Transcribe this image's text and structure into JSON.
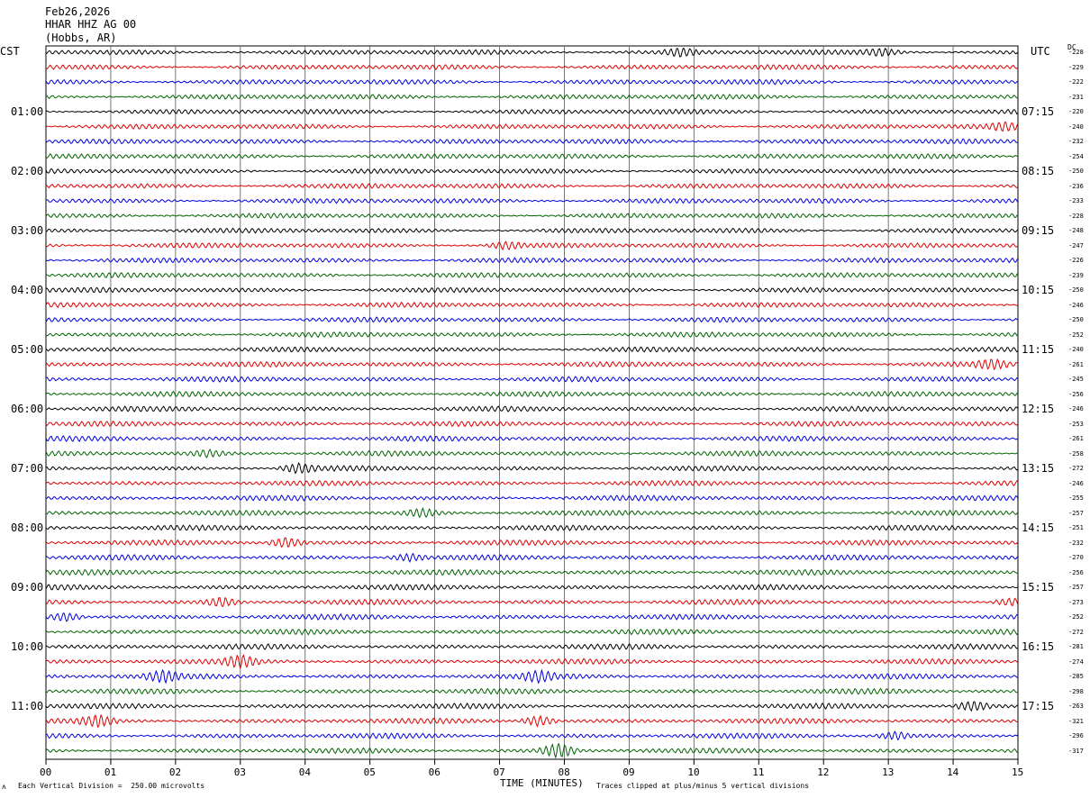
{
  "header": {
    "date": "Feb26,2026",
    "station": "HHAR HHZ AG 00",
    "location": "(Hobbs, AR)"
  },
  "left_timezone": "CST",
  "right_timezone": "UTC",
  "dc_label": "DC",
  "footer": {
    "vertical_division": "Each Vertical Division =  250.00 microvolts",
    "xlabel": "TIME (MINUTES)",
    "clip_note": "Traces clipped at plus/minus 5 vertical divisions",
    "corner_mark": "ʌ"
  },
  "colors": {
    "trace_cycle": [
      "#000000",
      "#e00000",
      "#0000e0",
      "#006400"
    ],
    "grid": "#000000",
    "background": "#ffffff"
  },
  "chart_data": {
    "type": "line",
    "title": "",
    "xlabel": "TIME (MINUTES)",
    "xlim": [
      0,
      15
    ],
    "x_ticks": [
      "00",
      "01",
      "02",
      "03",
      "04",
      "05",
      "06",
      "07",
      "08",
      "09",
      "10",
      "11",
      "12",
      "13",
      "14",
      "15"
    ],
    "rows": 48,
    "rows_per_hour": 4,
    "left_hour_labels": [
      "01:00",
      "02:00",
      "03:00",
      "04:00",
      "05:00",
      "06:00",
      "07:00",
      "08:00",
      "09:00",
      "10:00",
      "11:00"
    ],
    "right_hour_labels": [
      "07:15",
      "08:15",
      "09:15",
      "10:15",
      "11:15",
      "12:15",
      "13:15",
      "14:15",
      "15:15",
      "16:15",
      "17:15"
    ],
    "dc_offsets": [
      -228,
      -229,
      -222,
      -231,
      -220,
      -240,
      -232,
      -254,
      -250,
      -236,
      -233,
      -228,
      -248,
      -247,
      -226,
      -239,
      -250,
      -246,
      -250,
      -252,
      -240,
      -261,
      -245,
      -256,
      -246,
      -253,
      -261,
      -258,
      -272,
      -246,
      -255,
      -257,
      -251,
      -232,
      -270,
      -256,
      -257,
      -273,
      -252,
      -272,
      -281,
      -274,
      -285,
      -298,
      -263,
      -321,
      -296,
      -317
    ],
    "events": [
      {
        "row": 0,
        "minute": 9.8,
        "amp": 1.6
      },
      {
        "row": 0,
        "minute": 12.9,
        "amp": 1.5
      },
      {
        "row": 5,
        "minute": 14.8,
        "amp": 1.4
      },
      {
        "row": 13,
        "minute": 7.1,
        "amp": 1.5
      },
      {
        "row": 21,
        "minute": 14.6,
        "amp": 1.8
      },
      {
        "row": 27,
        "minute": 2.5,
        "amp": 1.4
      },
      {
        "row": 28,
        "minute": 3.9,
        "amp": 2.0
      },
      {
        "row": 31,
        "minute": 5.8,
        "amp": 1.6
      },
      {
        "row": 33,
        "minute": 3.7,
        "amp": 2.2
      },
      {
        "row": 34,
        "minute": 5.6,
        "amp": 1.6
      },
      {
        "row": 37,
        "minute": 2.7,
        "amp": 2.0
      },
      {
        "row": 37,
        "minute": 14.9,
        "amp": 1.6
      },
      {
        "row": 38,
        "minute": 0.3,
        "amp": 1.9
      },
      {
        "row": 41,
        "minute": 3.0,
        "amp": 2.4
      },
      {
        "row": 42,
        "minute": 1.8,
        "amp": 2.2
      },
      {
        "row": 42,
        "minute": 7.6,
        "amp": 2.0
      },
      {
        "row": 44,
        "minute": 14.3,
        "amp": 2.0
      },
      {
        "row": 45,
        "minute": 0.8,
        "amp": 2.2
      },
      {
        "row": 45,
        "minute": 7.6,
        "amp": 2.4
      },
      {
        "row": 46,
        "minute": 13.1,
        "amp": 1.5
      },
      {
        "row": 47,
        "minute": 7.9,
        "amp": 3.2
      }
    ]
  }
}
